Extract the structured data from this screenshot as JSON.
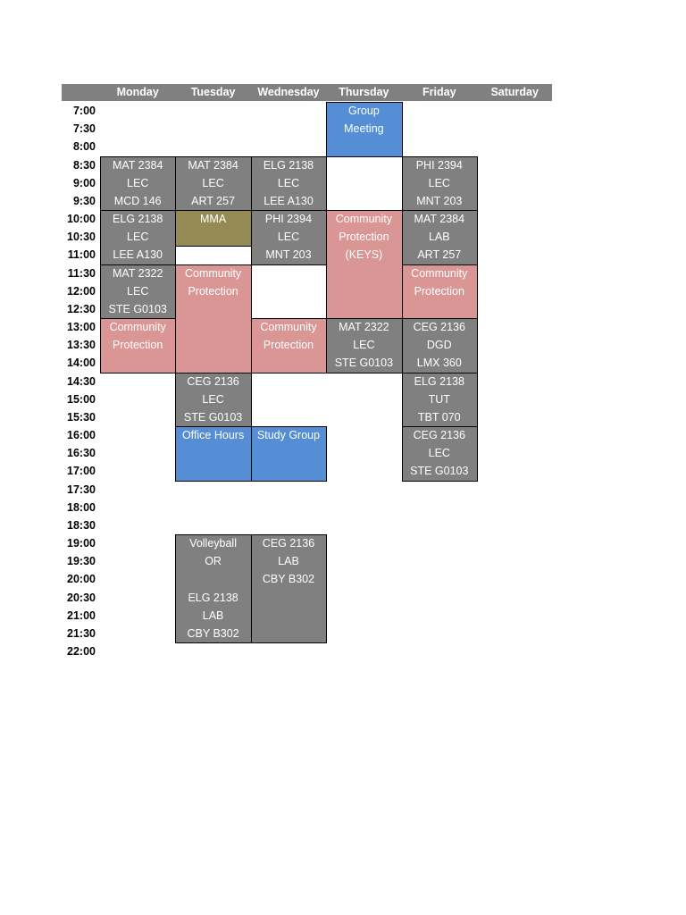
{
  "schedule": {
    "times": [
      "7:00",
      "7:30",
      "8:00",
      "8:30",
      "9:00",
      "9:30",
      "10:00",
      "10:30",
      "11:00",
      "11:30",
      "12:00",
      "12:30",
      "13:00",
      "13:30",
      "14:00",
      "14:30",
      "15:00",
      "15:30",
      "16:00",
      "16:30",
      "17:00",
      "17:30",
      "18:00",
      "18:30",
      "19:00",
      "19:30",
      "20:00",
      "20:30",
      "21:00",
      "21:30",
      "22:00"
    ],
    "columns": [
      {
        "day": "Monday",
        "blocks": [
          {
            "start": "8:30",
            "end": "9:30",
            "fill": "#808080",
            "lines": [
              "MAT 2384",
              "LEC",
              "MCD 146"
            ]
          },
          {
            "start": "10:00",
            "end": "11:00",
            "fill": "#808080",
            "lines": [
              "ELG 2138",
              "LEC",
              "LEE A130"
            ]
          },
          {
            "start": "11:30",
            "end": "12:30",
            "fill": "#808080",
            "lines": [
              "MAT 2322",
              "LEC",
              "STE G0103"
            ]
          },
          {
            "start": "13:00",
            "end": "14:00",
            "fill": "#da9694",
            "lines": [
              "Community",
              "Protection"
            ]
          }
        ]
      },
      {
        "day": "Tuesday",
        "blocks": [
          {
            "start": "8:30",
            "end": "9:30",
            "fill": "#808080",
            "lines": [
              "MAT 2384",
              "LEC",
              "ART 257"
            ]
          },
          {
            "start": "10:00",
            "end": "10:30",
            "fill": "#948a54",
            "lines": [
              "MMA"
            ]
          },
          {
            "start": "11:00",
            "end": "11:00",
            "fill": "#ffffff",
            "lines": []
          },
          {
            "start": "11:30",
            "end": "14:00",
            "fill": "#da9694",
            "lines": [
              "Community",
              "Protection"
            ]
          },
          {
            "start": "14:30",
            "end": "15:30",
            "fill": "#808080",
            "lines": [
              "CEG 2136",
              "LEC",
              "STE G0103"
            ]
          },
          {
            "start": "16:00",
            "end": "17:00",
            "fill": "#558ed5",
            "lines": [
              "Office Hours"
            ]
          },
          {
            "start": "19:00",
            "end": "21:30",
            "fill": "#808080",
            "lines": [
              "Volleyball",
              "OR",
              null,
              "ELG 2138",
              "LAB",
              "CBY B302"
            ]
          }
        ]
      },
      {
        "day": "Wednesday",
        "blocks": [
          {
            "start": "8:30",
            "end": "9:30",
            "fill": "#808080",
            "lines": [
              "ELG 2138",
              "LEC",
              "LEE A130"
            ]
          },
          {
            "start": "10:00",
            "end": "11:00",
            "fill": "#808080",
            "lines": [
              "PHI 2394",
              "LEC",
              "MNT 203"
            ]
          },
          {
            "start": "11:30",
            "end": "12:30",
            "fill": "#ffffff",
            "lines": []
          },
          {
            "start": "13:00",
            "end": "14:00",
            "fill": "#da9694",
            "lines": [
              "Community",
              "Protection"
            ]
          },
          {
            "start": "16:00",
            "end": "17:00",
            "fill": "#558ed5",
            "lines": [
              "Study Group"
            ]
          },
          {
            "start": "19:00",
            "end": "21:30",
            "fill": "#808080",
            "lines": [
              "CEG 2136",
              "LAB",
              "CBY B302"
            ]
          }
        ]
      },
      {
        "day": "Thursday",
        "blocks": [
          {
            "start": "7:00",
            "end": "8:00",
            "fill": "#558ed5",
            "lines": [
              "Group",
              "Meeting"
            ]
          },
          {
            "start": "8:30",
            "end": "9:30",
            "fill": "#ffffff",
            "lines": []
          },
          {
            "start": "10:00",
            "end": "12:30",
            "fill": "#da9694",
            "lines": [
              "Community",
              "Protection",
              "(KEYS)"
            ]
          },
          {
            "start": "13:00",
            "end": "14:00",
            "fill": "#808080",
            "lines": [
              "MAT 2322",
              "LEC",
              "STE G0103"
            ]
          }
        ]
      },
      {
        "day": "Friday",
        "blocks": [
          {
            "start": "8:30",
            "end": "9:30",
            "fill": "#808080",
            "lines": [
              "PHI 2394",
              "LEC",
              "MNT 203"
            ]
          },
          {
            "start": "10:00",
            "end": "11:00",
            "fill": "#808080",
            "lines": [
              "MAT 2384",
              "LAB",
              "ART 257"
            ]
          },
          {
            "start": "11:30",
            "end": "12:30",
            "fill": "#da9694",
            "lines": [
              "Community",
              "Protection"
            ]
          },
          {
            "start": "13:00",
            "end": "14:00",
            "fill": "#808080",
            "lines": [
              "CEG 2136",
              "DGD",
              "LMX 360"
            ]
          },
          {
            "start": "14:30",
            "end": "15:30",
            "fill": "#808080",
            "lines": [
              "ELG 2138",
              "TUT",
              "TBT 070"
            ]
          },
          {
            "start": "16:00",
            "end": "17:00",
            "fill": "#808080",
            "lines": [
              "CEG 2136",
              "LEC",
              "STE G0103"
            ]
          }
        ]
      },
      {
        "day": "Saturday",
        "blocks": []
      }
    ]
  }
}
